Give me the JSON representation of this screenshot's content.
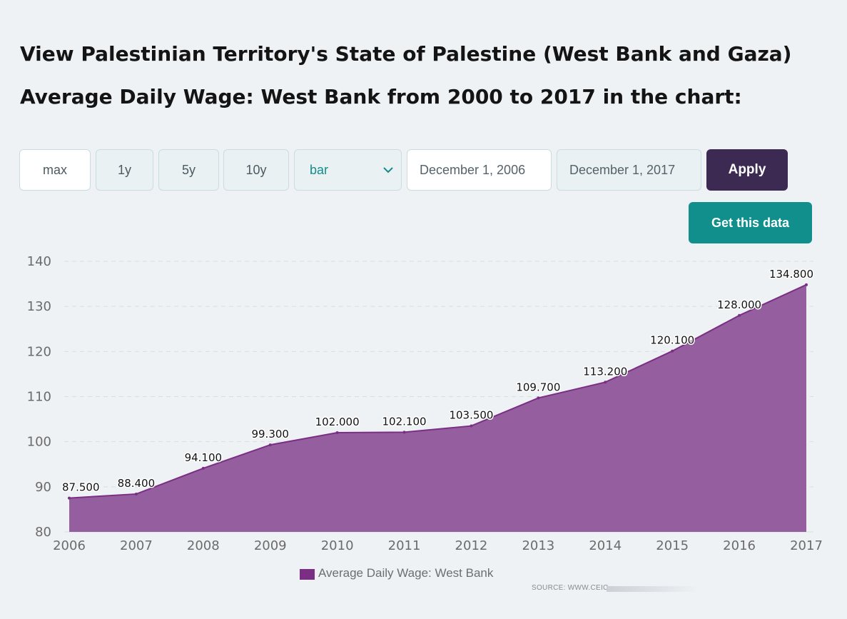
{
  "page": {
    "title": "View Palestinian Territory's State of Palestine (West Bank and Gaza) Average Daily Wage: West Bank from 2000 to 2017 in the chart:"
  },
  "controls": {
    "range_buttons": [
      "max",
      "1y",
      "5y",
      "10y"
    ],
    "active_range": "max",
    "chart_type_select": "bar",
    "start_date": "December 1, 2006",
    "end_date": "December 1, 2017",
    "apply_label": "Apply",
    "get_data_label": "Get this data"
  },
  "legend": {
    "label": "Average Daily Wage: West Bank",
    "color": "#7b2f84"
  },
  "source": "SOURCE: WWW.CEIC",
  "chart_data": {
    "type": "area",
    "x": [
      "2006",
      "2007",
      "2008",
      "2009",
      "2010",
      "2011",
      "2012",
      "2013",
      "2014",
      "2015",
      "2016",
      "2017"
    ],
    "series": [
      {
        "name": "Average Daily Wage: West Bank",
        "values": [
          87.5,
          88.4,
          94.1,
          99.3,
          102.0,
          102.1,
          103.5,
          109.7,
          113.2,
          120.1,
          128.0,
          134.8
        ],
        "labels": [
          "87.500",
          "88.400",
          "94.100",
          "99.300",
          "102.000",
          "102.100",
          "103.500",
          "109.700",
          "113.200",
          "120.100",
          "128.000",
          "134.800"
        ],
        "color": "#955e9e",
        "line_color": "#7b2f84"
      }
    ],
    "yticks": [
      "80",
      "90",
      "100",
      "110",
      "120",
      "130",
      "140"
    ],
    "ylim": [
      80,
      140
    ],
    "grid": "horizontal dashed",
    "legend_position": "bottom"
  }
}
